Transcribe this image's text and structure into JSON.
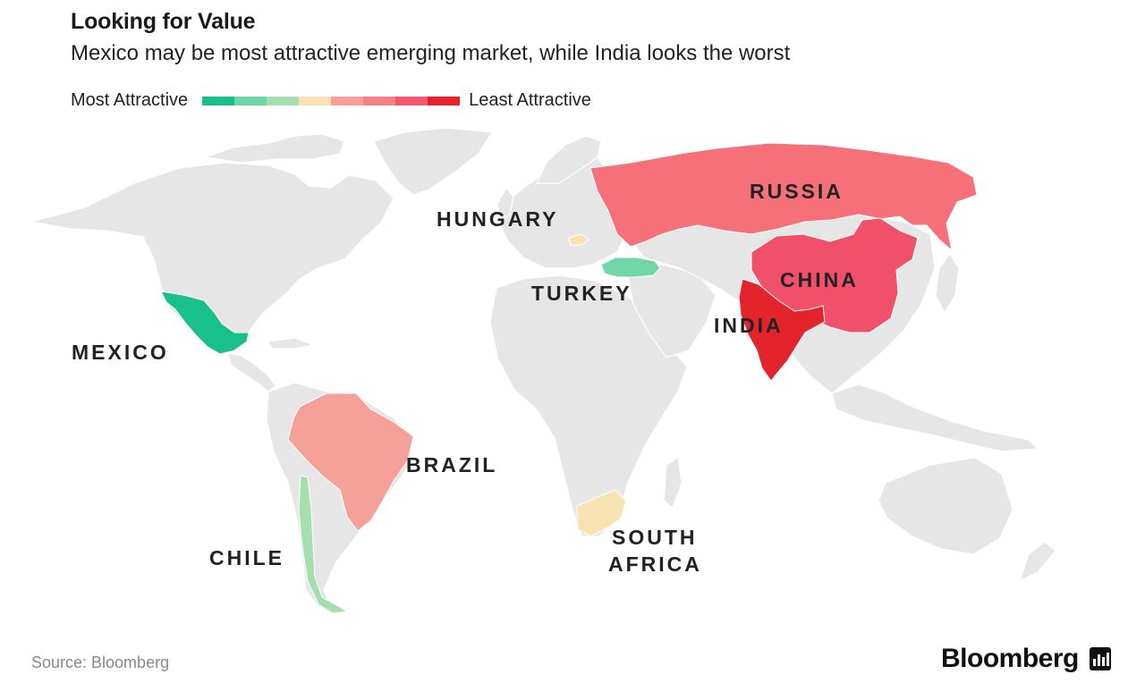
{
  "header": {
    "title": "Looking for Value",
    "subtitle": "Mexico may be most attractive emerging market, while India looks the worst"
  },
  "legend": {
    "low_label": "Most Attractive",
    "high_label": "Least Attractive",
    "scale_colors": [
      "#18c08b",
      "#6fd7a5",
      "#a5dfb0",
      "#f8e2b2",
      "#f5a19a",
      "#f58186",
      "#f05a6c",
      "#e3242b"
    ]
  },
  "colors": {
    "land": "#e6e6e6",
    "border": "#ffffff"
  },
  "countries": [
    {
      "name": "MEXICO",
      "color": "#18c08b"
    },
    {
      "name": "CHILE",
      "color": "#a5dfb0"
    },
    {
      "name": "BRAZIL",
      "color": "#f5a19a"
    },
    {
      "name": "SOUTH AFRICA",
      "color": "#f8e2b2",
      "label_lines": [
        "SOUTH",
        "AFRICA"
      ]
    },
    {
      "name": "HUNGARY",
      "color": "#f8e2b2"
    },
    {
      "name": "TURKEY",
      "color": "#6fd7a5"
    },
    {
      "name": "RUSSIA",
      "color": "#f57078"
    },
    {
      "name": "CHINA",
      "color": "#f0506a"
    },
    {
      "name": "INDIA",
      "color": "#e3242b"
    }
  ],
  "footer": {
    "source": "Source: Bloomberg",
    "brand": "Bloomberg"
  }
}
